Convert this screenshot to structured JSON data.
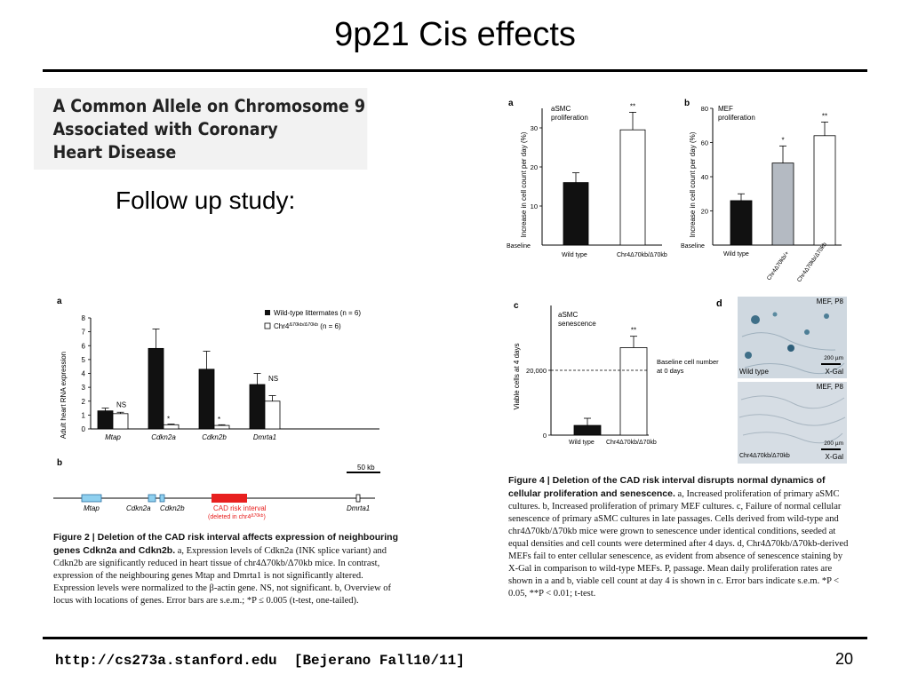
{
  "slide": {
    "title": "9p21 Cis effects",
    "follow_up": "Follow up study:",
    "paper_title": "A Common Allele on Chromosome 9\nAssociated with Coronary\nHeart Disease",
    "footer_url": "http://cs273a.stanford.edu  [Bejerano Fall10/11]",
    "page_number": "20"
  },
  "figure2": {
    "panel_a": "a",
    "panel_b": "b",
    "ylabel": "Adult heart RNA expression",
    "legend_wt": "Wild-type littermates (n = 6)",
    "legend_chr4_base": "Chr4",
    "legend_chr4_sup": "Δ70kb/Δ70kb",
    "legend_chr4_n": " (n = 6)",
    "ns_label": "NS",
    "star": "*",
    "scale_bar": "50 kb",
    "genes": [
      "Mtap",
      "Cdkn2a",
      "Cdkn2b",
      "Dmrta1"
    ],
    "cad_label_1": "CAD risk interval",
    "cad_label_2": "(deleted in chr4",
    "cad_label_2_sup": "Δ70kb",
    "cad_label_2_end": ")",
    "caption_title": "Figure 2 | Deletion of the CAD risk interval affects expression of neighbouring genes Cdkn2a and Cdkn2b.",
    "caption_body": "a, Expression levels of Cdkn2a (INK splice variant) and Cdkn2b are significantly reduced in heart tissue of chr4Δ70kb/Δ70kb mice. In contrast, expression of the neighbouring genes Mtap and Dmrta1 is not significantly altered. Expression levels were normalized to the β-actin gene. NS, not significant. b, Overview of locus with locations of genes. Error bars are s.e.m.; *P ≤ 0.005 (t-test, one-tailed)."
  },
  "figure4": {
    "panel_a": "a",
    "panel_b": "b",
    "panel_c": "c",
    "panel_d": "d",
    "a_title": "aSMC\nproliferation",
    "b_title": "MEF\nproliferation",
    "c_title": "aSMC\nsenescence",
    "prolif_ylabel": "Increase in cell count per day (%)",
    "viable_ylabel": "Viable cells at 4 days",
    "baseline": "Baseline",
    "baseline_cell": "Baseline cell number\nat 0 days",
    "wild_type": "Wild type",
    "chr4_label": "Chr4Δ70kb/Δ70kb",
    "chr4_plus": "Chr4Δ70kb/+",
    "c_tick": "20,000",
    "c_zero": "0",
    "sig1": "*",
    "sig2": "**",
    "d_label": "MEF, P8",
    "d_scale": "200 µm",
    "d_stain": "X-Gal",
    "d_wt": "Wild type",
    "d_chr4": "Chr4Δ70kb/Δ70kb",
    "caption_title": "Figure 4 | Deletion of the CAD risk interval disrupts normal dynamics of cellular proliferation and senescence.",
    "caption_body": "a, Increased proliferation of primary aSMC cultures. b, Increased proliferation of primary MEF cultures. c, Failure of normal cellular senescence of primary aSMC cultures in late passages. Cells derived from wild-type and chr4Δ70kb/Δ70kb mice were grown to senescence under identical conditions, seeded at equal densities and cell counts were determined after 4 days. d, Chr4Δ70kb/Δ70kb-derived MEFs fail to enter cellular senescence, as evident from absence of senescence staining by X-Gal in comparison to wild-type MEFs. P, passage. Mean daily proliferation rates are shown in a and b, viable cell count at day 4 is shown in c. Error bars indicate s.e.m. *P < 0.05, **P < 0.01; t-test."
  },
  "chart_data": [
    {
      "type": "bar",
      "id": "fig2a",
      "categories": [
        "Mtap",
        "Cdkn2a",
        "Cdkn2b",
        "Dmrta1"
      ],
      "ylim": [
        0,
        8
      ],
      "yticks": [
        0,
        1,
        2,
        3,
        4,
        5,
        6,
        7,
        8
      ],
      "ylabel": "Adult heart RNA expression",
      "series": [
        {
          "name": "Wild-type littermates (n = 6)",
          "values": [
            1.3,
            5.8,
            4.3,
            3.2
          ],
          "errors": [
            0.2,
            1.4,
            1.3,
            0.8
          ],
          "color": "#111111"
        },
        {
          "name": "Chr4Δ70kb/Δ70kb (n = 6)",
          "values": [
            1.1,
            0.3,
            0.25,
            2.0
          ],
          "errors": [
            0.1,
            0.05,
            0.05,
            0.4
          ],
          "color": "#ffffff"
        }
      ],
      "annotations": [
        "NS",
        "*",
        "*",
        "NS"
      ]
    },
    {
      "type": "bar",
      "id": "fig4a",
      "title": "aSMC proliferation",
      "categories": [
        "Wild type",
        "Chr4Δ70kb/Δ70kb"
      ],
      "ylim": [
        0,
        35
      ],
      "yticks": [
        10,
        20,
        30
      ],
      "ylabel": "Increase in cell count per day (%)",
      "values": [
        16,
        29.5
      ],
      "errors": [
        2.5,
        4.5
      ],
      "colors": [
        "#111111",
        "#ffffff"
      ],
      "annotations": [
        "",
        "**"
      ]
    },
    {
      "type": "bar",
      "id": "fig4b",
      "title": "MEF proliferation",
      "categories": [
        "Wild type",
        "Chr4Δ70kb/+",
        "Chr4Δ70kb/Δ70kb"
      ],
      "ylim": [
        0,
        80
      ],
      "yticks": [
        20,
        40,
        60,
        80
      ],
      "ylabel": "Increase in cell count per day (%)",
      "values": [
        26,
        48,
        64
      ],
      "errors": [
        4,
        10,
        8
      ],
      "colors": [
        "#111111",
        "#b4bac2",
        "#ffffff"
      ],
      "annotations": [
        "",
        "*",
        "**"
      ]
    },
    {
      "type": "bar",
      "id": "fig4c",
      "title": "aSMC senescence",
      "categories": [
        "Wild type",
        "Chr4Δ70kb/Δ70kb"
      ],
      "ylim": [
        0,
        40000
      ],
      "yticks": [
        0,
        20000
      ],
      "ylabel": "Viable cells at 4 days",
      "values": [
        3000,
        27000
      ],
      "errors": [
        2200,
        3500
      ],
      "colors": [
        "#111111",
        "#ffffff"
      ],
      "baseline": 20000,
      "annotations": [
        "",
        "**"
      ]
    }
  ]
}
